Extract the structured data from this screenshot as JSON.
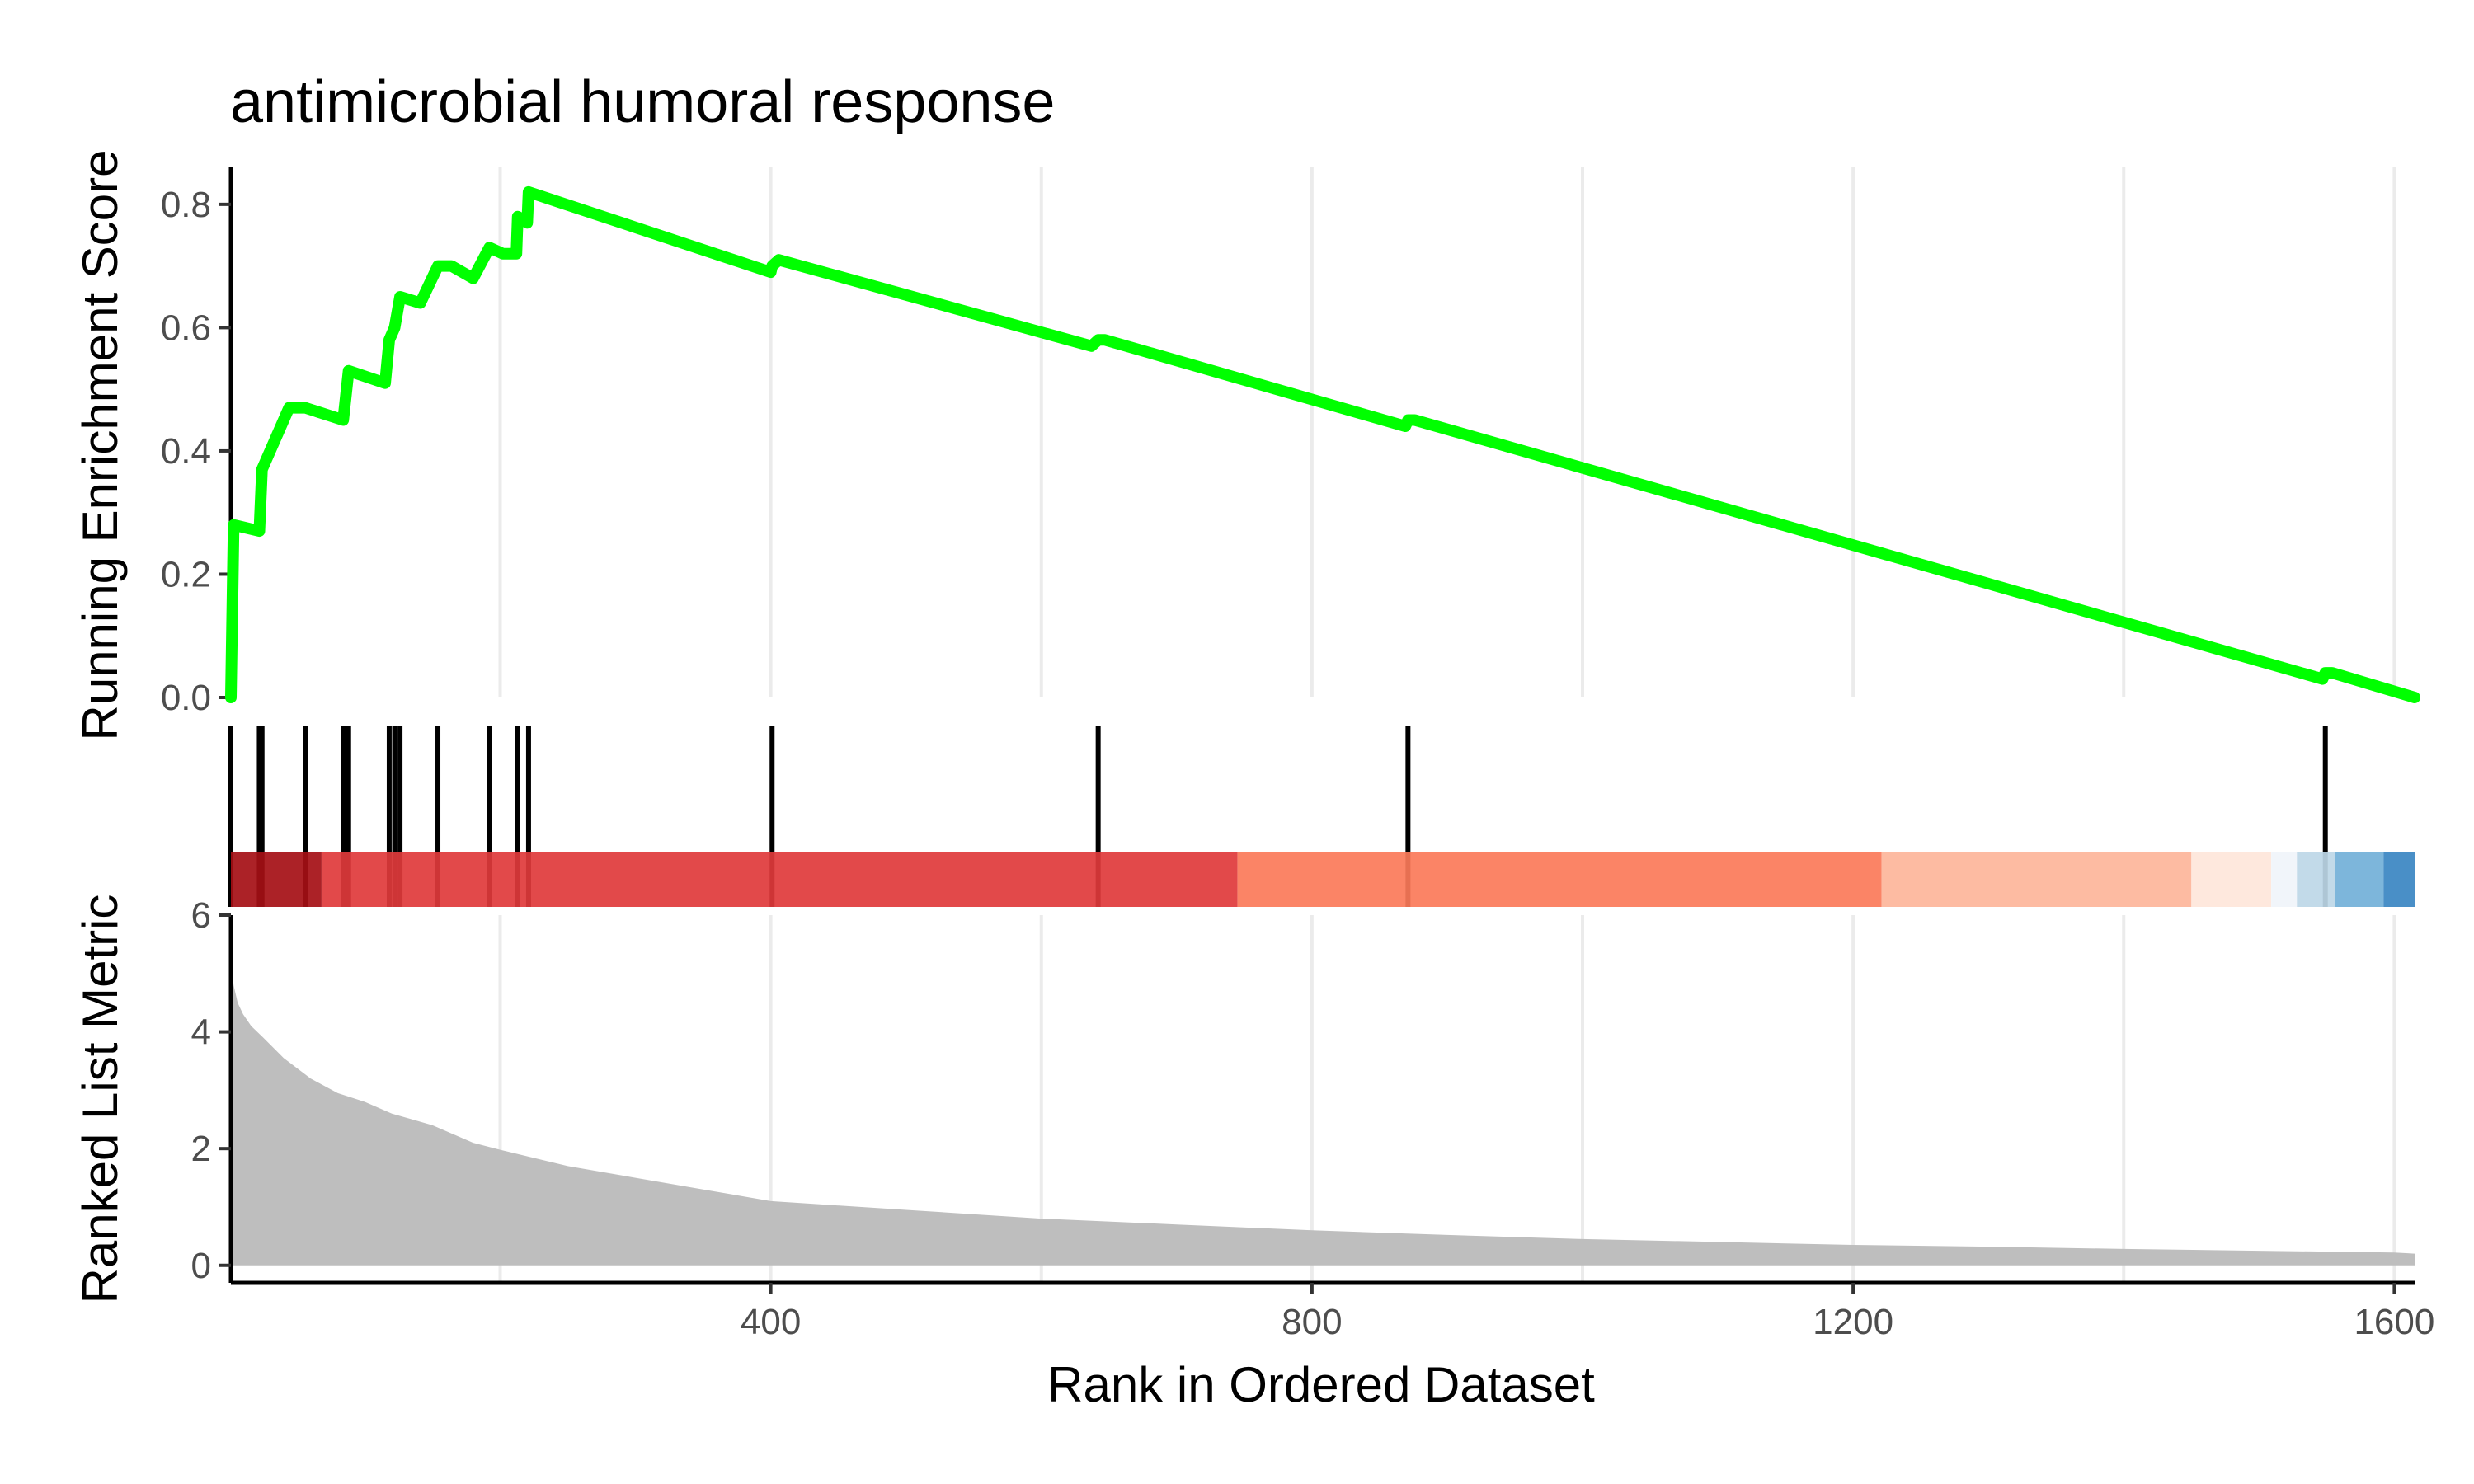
{
  "chart_data": {
    "type": "line",
    "title": "antimicrobial humoral response",
    "xlabel": "Rank in Ordered Dataset",
    "xlim": [
      1,
      1615
    ],
    "x_ticks": [
      400,
      800,
      1200,
      1600
    ],
    "grid": "vertical major lines",
    "panels": {
      "running_es": {
        "ylabel": "Running Enrichment Score",
        "ylim": [
          0,
          0.86
        ],
        "y_ticks": [
          0.0,
          0.2,
          0.4,
          0.6,
          0.8
        ],
        "y_tick_labels": [
          "0.0",
          "0.2",
          "0.4",
          "0.6",
          "0.8"
        ],
        "line_color": "#00FF00",
        "x": [
          1,
          3,
          22,
          24,
          44,
          56,
          84,
          88,
          115,
          118,
          122,
          126,
          141,
          154,
          164,
          180,
          192,
          202,
          212,
          213,
          220,
          221,
          400,
          401,
          406,
          637,
          642,
          647,
          869,
          871,
          876,
          1547,
          1549,
          1554,
          1615
        ],
        "y": [
          0.0,
          0.28,
          0.27,
          0.37,
          0.47,
          0.47,
          0.45,
          0.53,
          0.51,
          0.58,
          0.6,
          0.65,
          0.64,
          0.7,
          0.7,
          0.68,
          0.73,
          0.72,
          0.72,
          0.78,
          0.77,
          0.82,
          0.69,
          0.7,
          0.71,
          0.57,
          0.58,
          0.58,
          0.44,
          0.45,
          0.45,
          0.03,
          0.04,
          0.04,
          0.0
        ]
      },
      "hits": {
        "positions": [
          1,
          22,
          24,
          56,
          84,
          88,
          118,
          122,
          126,
          154,
          192,
          213,
          221,
          401,
          642,
          871,
          1549
        ],
        "color": "#000000"
      },
      "ranked_metric_bar": {
        "segments": [
          {
            "start": 1,
            "end": 68,
            "color": "#A50F15"
          },
          {
            "start": 68,
            "end": 745,
            "color": "#E0393B"
          },
          {
            "start": 745,
            "end": 1221,
            "color": "#FB7959"
          },
          {
            "start": 1221,
            "end": 1450,
            "color": "#FDB59A"
          },
          {
            "start": 1450,
            "end": 1509,
            "color": "#FEE6DA"
          },
          {
            "start": 1509,
            "end": 1528,
            "color": "#F0F4FA"
          },
          {
            "start": 1528,
            "end": 1556,
            "color": "#BDD7E7"
          },
          {
            "start": 1556,
            "end": 1592,
            "color": "#72B0D8"
          },
          {
            "start": 1592,
            "end": 1615,
            "color": "#3A86C2"
          }
        ]
      },
      "ranked_metric": {
        "ylabel": "Ranked List Metric",
        "ylim": [
          -0.3,
          6.0
        ],
        "y_ticks": [
          0,
          2,
          4,
          6
        ],
        "y_tick_labels": [
          "0",
          "2",
          "4",
          "6"
        ],
        "fill_color": "#BEBEBE",
        "x": [
          1,
          3,
          6,
          10,
          16,
          25,
          40,
          60,
          80,
          100,
          120,
          150,
          180,
          200,
          250,
          300,
          350,
          400,
          500,
          600,
          700,
          800,
          900,
          1000,
          1100,
          1200,
          1300,
          1400,
          1500,
          1600,
          1615
        ],
        "y": [
          5.3,
          4.8,
          4.5,
          4.3,
          4.1,
          3.9,
          3.55,
          3.2,
          2.95,
          2.8,
          2.6,
          2.4,
          2.1,
          1.98,
          1.7,
          1.5,
          1.3,
          1.1,
          0.95,
          0.8,
          0.7,
          0.6,
          0.52,
          0.45,
          0.4,
          0.35,
          0.32,
          0.28,
          0.25,
          0.22,
          0.2
        ]
      }
    }
  }
}
